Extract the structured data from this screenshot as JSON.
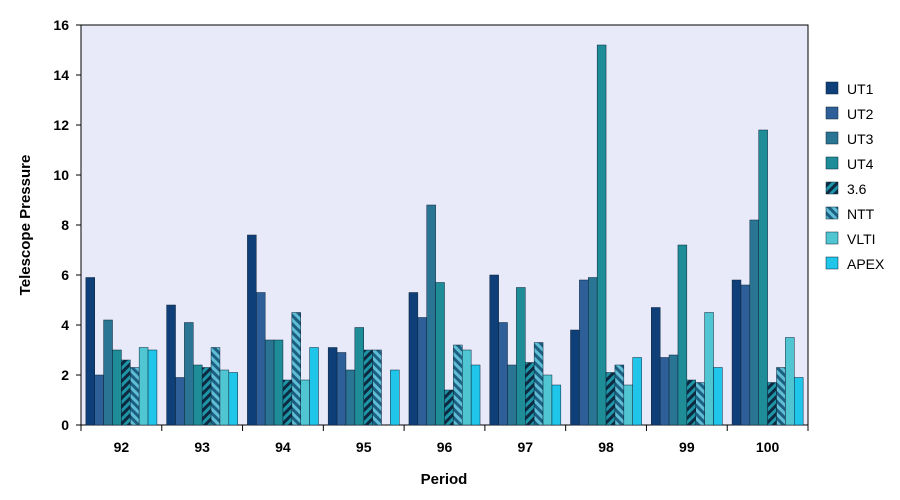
{
  "chart_data": {
    "type": "bar",
    "xlabel": "Period",
    "ylabel": "Telescope Pressure",
    "ylim": [
      0,
      16
    ],
    "yticks": [
      "0",
      "2",
      "4",
      "6",
      "8",
      "10",
      "12",
      "14",
      "16"
    ],
    "categories": [
      "92",
      "93",
      "94",
      "95",
      "96",
      "97",
      "98",
      "99",
      "100"
    ],
    "legend_position": "right",
    "grid": false,
    "plot_background": "#e8eafa",
    "series": [
      {
        "name": "UT1",
        "color": "#0f3f78",
        "pattern": "solid",
        "values": [
          5.9,
          4.8,
          7.6,
          3.1,
          5.3,
          6.0,
          3.8,
          4.7,
          5.8
        ]
      },
      {
        "name": "UT2",
        "color": "#2e5f98",
        "pattern": "solid",
        "values": [
          2.0,
          1.9,
          5.3,
          2.9,
          4.3,
          4.1,
          5.8,
          2.7,
          5.6
        ]
      },
      {
        "name": "UT3",
        "color": "#2a7594",
        "pattern": "solid",
        "values": [
          4.2,
          4.1,
          3.4,
          2.2,
          8.8,
          2.4,
          5.9,
          2.8,
          8.2
        ]
      },
      {
        "name": "UT4",
        "color": "#1e8d98",
        "pattern": "solid",
        "values": [
          3.0,
          2.4,
          3.4,
          3.9,
          5.7,
          5.5,
          15.2,
          7.2,
          11.8
        ]
      },
      {
        "name": "3.6",
        "color": "#1f95a8",
        "pattern": "hatch-dark",
        "values": [
          2.6,
          2.3,
          1.8,
          3.0,
          1.4,
          2.5,
          2.1,
          1.8,
          1.7
        ]
      },
      {
        "name": "NTT",
        "color": "#5fbdd4",
        "pattern": "hatch-light",
        "values": [
          2.3,
          3.1,
          4.5,
          3.0,
          3.2,
          3.3,
          2.4,
          1.7,
          2.3
        ]
      },
      {
        "name": "VLTI",
        "color": "#4fc6d2",
        "pattern": "solid",
        "values": [
          3.1,
          2.2,
          1.8,
          null,
          3.0,
          2.0,
          1.6,
          4.5,
          3.5
        ]
      },
      {
        "name": "APEX",
        "color": "#1fc6ea",
        "pattern": "solid",
        "values": [
          3.0,
          2.1,
          3.1,
          2.2,
          2.4,
          1.6,
          2.7,
          2.3,
          1.9
        ]
      }
    ]
  }
}
